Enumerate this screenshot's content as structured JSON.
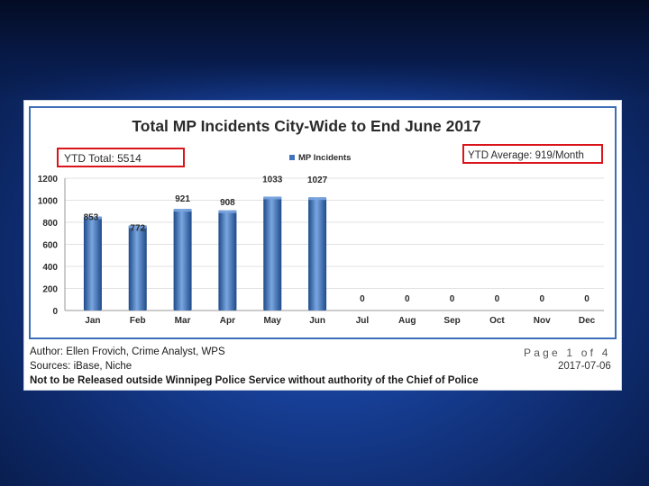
{
  "chart_data": {
    "type": "bar",
    "title": "Total MP Incidents City-Wide to End June 2017",
    "categories": [
      "Jan",
      "Feb",
      "Mar",
      "Apr",
      "May",
      "Jun",
      "Jul",
      "Aug",
      "Sep",
      "Oct",
      "Nov",
      "Dec"
    ],
    "series": [
      {
        "name": "MP Incidents",
        "values": [
          853,
          772,
          921,
          908,
          1033,
          1027,
          0,
          0,
          0,
          0,
          0,
          0
        ]
      }
    ],
    "data_labels": [
      "853",
      "772",
      "921",
      "908",
      "1033",
      "1027",
      "0",
      "0",
      "0",
      "0",
      "0",
      "0"
    ],
    "ylim": [
      0,
      1200
    ],
    "yticks": [
      0,
      200,
      400,
      600,
      800,
      1000,
      1200
    ],
    "xlabel": "",
    "ylabel": "",
    "legend": "top-center",
    "grid": true,
    "annotations": {
      "ytd_total": "YTD Total: 5514",
      "ytd_average": "YTD Average: 919/Month"
    },
    "colors": {
      "bar": "#3f74bd",
      "bar_dark": "#1e4a8a",
      "bar_light": "#7aa6e0",
      "annotation_box": "#d9141a",
      "frame": "#3d6fb8",
      "grid": "#e2e2e2"
    }
  },
  "footer": {
    "author": "Author: Ellen Frovich, Crime Analyst, WPS",
    "sources": "Sources: iBase, Niche",
    "notice": "Not to be Released outside Winnipeg Police Service without authority of the Chief of Police",
    "page": "Page 1 of 4",
    "date": "2017-07-06"
  }
}
